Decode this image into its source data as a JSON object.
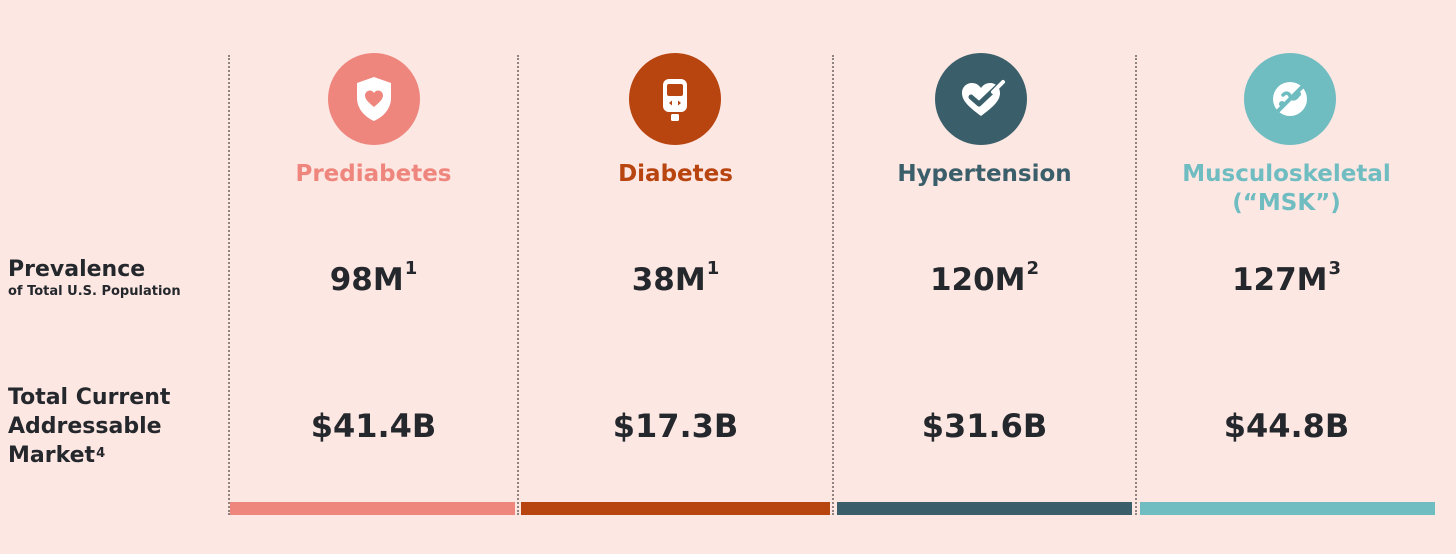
{
  "labels": {
    "prevalence_title": "Prevalence",
    "prevalence_sub": "of Total U.S. Population",
    "tam_line1": "Total Current",
    "tam_line2": "Addressable",
    "tam_line3": "Market",
    "tam_footnote": "4"
  },
  "columns": [
    {
      "title": "Prediabetes",
      "title_line2": "",
      "prevalence": "98M",
      "prevalence_note": "1",
      "tam": "$41.4B",
      "color": "#ee867d",
      "icon": "shield-heart-icon"
    },
    {
      "title": "Diabetes",
      "title_line2": "",
      "prevalence": "38M",
      "prevalence_note": "1",
      "tam": "$17.3B",
      "color": "#b84410",
      "icon": "glucose-meter-icon"
    },
    {
      "title": "Hypertension",
      "title_line2": "",
      "prevalence": "120M",
      "prevalence_note": "2",
      "tam": "$31.6B",
      "color": "#3a5f6a",
      "icon": "heart-check-icon"
    },
    {
      "title": "Musculoskeletal",
      "title_line2": "(“MSK”)",
      "prevalence": "127M",
      "prevalence_note": "3",
      "tam": "$44.8B",
      "color": "#6fbcc1",
      "icon": "bone-joint-icon"
    }
  ]
}
